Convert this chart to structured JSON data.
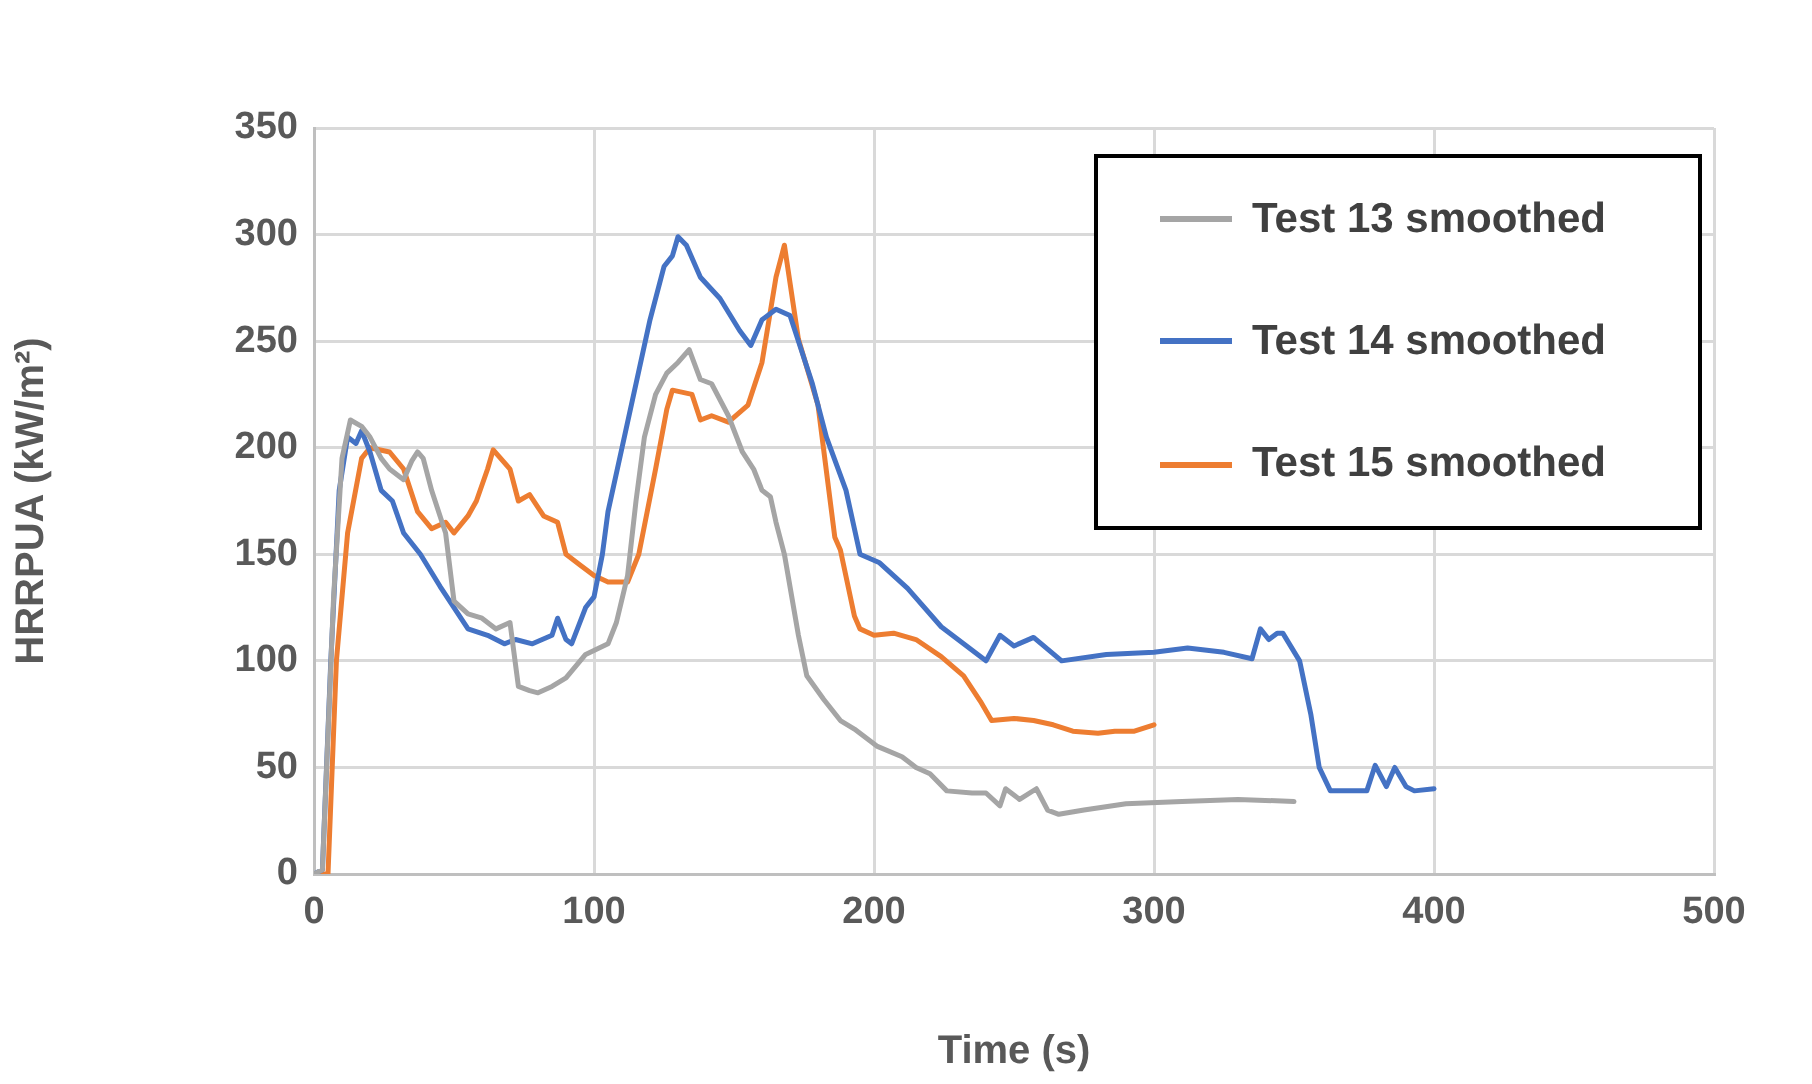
{
  "chart_data": {
    "type": "line",
    "xlabel": "Time (s)",
    "ylabel": "HRRPUA (kW/m²)",
    "xlim": [
      0,
      500
    ],
    "xticks": [
      0,
      100,
      200,
      300,
      400,
      500
    ],
    "ylim": [
      0,
      350
    ],
    "yticks": [
      0,
      50,
      100,
      150,
      200,
      250,
      300,
      350
    ],
    "grid": true,
    "legend": "top right",
    "marker": "none",
    "line_style": "solid",
    "series": [
      {
        "name": "Test 13 smoothed",
        "color": "#a5a5a5",
        "x": [
          0,
          3,
          7,
          10,
          13,
          17,
          20,
          24,
          27,
          32,
          35,
          37,
          39,
          42,
          47,
          50,
          55,
          60,
          65,
          70,
          73,
          77,
          80,
          85,
          90,
          97,
          105,
          108,
          112,
          115,
          118,
          122,
          126,
          130,
          134,
          138,
          142,
          148,
          153,
          157,
          160,
          163,
          165,
          168,
          173,
          176,
          182,
          188,
          193,
          201,
          210,
          215,
          220,
          226,
          235,
          240,
          245,
          247,
          252,
          258,
          262,
          266,
          275,
          290,
          310,
          330,
          350
        ],
        "values": [
          0,
          2,
          130,
          195,
          213,
          210,
          205,
          195,
          190,
          185,
          194,
          198,
          195,
          180,
          160,
          128,
          122,
          120,
          115,
          118,
          88,
          86,
          85,
          88,
          92,
          103,
          108,
          118,
          140,
          175,
          205,
          225,
          235,
          240,
          246,
          232,
          230,
          215,
          198,
          190,
          180,
          177,
          165,
          150,
          112,
          93,
          82,
          72,
          68,
          60,
          55,
          50,
          47,
          39,
          38,
          38,
          32,
          40,
          35,
          40,
          30,
          28,
          30,
          33,
          34,
          35,
          34
        ]
      },
      {
        "name": "Test 14 smoothed",
        "color": "#4472c4",
        "x": [
          0,
          3,
          6,
          9,
          12,
          15,
          17,
          20,
          24,
          28,
          32,
          38,
          45,
          50,
          55,
          62,
          68,
          72,
          78,
          85,
          87,
          90,
          92,
          97,
          100,
          103,
          105,
          110,
          115,
          120,
          125,
          128,
          130,
          133,
          138,
          145,
          152,
          156,
          160,
          165,
          170,
          178,
          183,
          190,
          195,
          202,
          212,
          224,
          232,
          240,
          245,
          250,
          257,
          267,
          283,
          300,
          312,
          325,
          335,
          338,
          341,
          344,
          346,
          352,
          356,
          359,
          363,
          370,
          376,
          379,
          383,
          386,
          390,
          393,
          400
        ],
        "values": [
          0,
          2,
          100,
          180,
          205,
          202,
          208,
          198,
          180,
          175,
          160,
          150,
          135,
          125,
          115,
          112,
          108,
          110,
          108,
          112,
          120,
          110,
          108,
          125,
          130,
          150,
          170,
          200,
          230,
          260,
          285,
          290,
          299,
          295,
          280,
          270,
          255,
          248,
          260,
          265,
          262,
          230,
          205,
          180,
          150,
          146,
          134,
          116,
          108,
          100,
          112,
          107,
          111,
          100,
          103,
          104,
          106,
          104,
          101,
          115,
          110,
          113,
          113,
          100,
          75,
          50,
          39,
          39,
          39,
          51,
          41,
          50,
          41,
          39,
          40
        ]
      },
      {
        "name": "Test 15 smoothed",
        "color": "#ed7d31",
        "x": [
          0,
          5,
          8,
          12,
          17,
          20,
          27,
          32,
          37,
          42,
          47,
          50,
          55,
          58,
          62,
          64,
          70,
          73,
          77,
          82,
          87,
          90,
          95,
          100,
          105,
          112,
          116,
          122,
          126,
          128,
          135,
          138,
          142,
          148,
          155,
          160,
          165,
          168,
          173,
          180,
          186,
          188,
          193,
          195,
          200,
          207,
          215,
          224,
          232,
          238,
          242,
          250,
          257,
          264,
          271,
          280,
          286,
          293,
          300
        ],
        "values": [
          0,
          0,
          100,
          160,
          195,
          200,
          198,
          190,
          170,
          162,
          165,
          160,
          168,
          175,
          190,
          199,
          190,
          175,
          178,
          168,
          165,
          150,
          145,
          140,
          137,
          137,
          150,
          190,
          218,
          227,
          225,
          213,
          215,
          212,
          220,
          240,
          280,
          295,
          251,
          220,
          158,
          152,
          121,
          115,
          112,
          113,
          110,
          102,
          93,
          81,
          72,
          73,
          72,
          70,
          67,
          66,
          67,
          67,
          70
        ]
      }
    ]
  }
}
